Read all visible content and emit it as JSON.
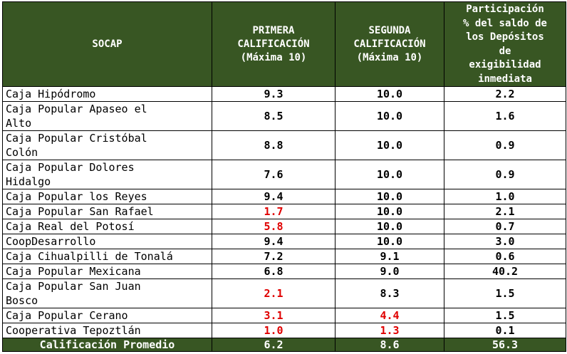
{
  "header": {
    "col1": "SOCAP",
    "col2": "PRIMERA\nCALIFICACIÓN\n(Máxima 10)",
    "col3": "SEGUNDA\nCALIFICACIÓN\n(Máxima 10)",
    "col4": "Participación\n% del saldo de\nlos Depósitos\nde\nexigibilidad\ninmediata"
  },
  "rows": [
    {
      "name": "Caja Hipódromo",
      "first": "9.3",
      "second": "10.0",
      "share": "2.2",
      "first_flag": false,
      "second_flag": false,
      "lines": 1
    },
    {
      "name": "Caja Popular Apaseo el\nAlto",
      "first": "8.5",
      "second": "10.0",
      "share": "1.6",
      "first_flag": false,
      "second_flag": false,
      "lines": 2
    },
    {
      "name": "Caja Popular Cristóbal\nColón",
      "first": "8.8",
      "second": "10.0",
      "share": "0.9",
      "first_flag": false,
      "second_flag": false,
      "lines": 2
    },
    {
      "name": "Caja Popular Dolores\nHidalgo",
      "first": "7.6",
      "second": "10.0",
      "share": "0.9",
      "first_flag": false,
      "second_flag": false,
      "lines": 2
    },
    {
      "name": "Caja Popular los Reyes",
      "first": "9.4",
      "second": "10.0",
      "share": "1.0",
      "first_flag": false,
      "second_flag": false,
      "lines": 1
    },
    {
      "name": "Caja Popular San Rafael",
      "first": "1.7",
      "second": "10.0",
      "share": "2.1",
      "first_flag": true,
      "second_flag": false,
      "lines": 1
    },
    {
      "name": "Caja Real del Potosí",
      "first": "5.8",
      "second": "10.0",
      "share": "0.7",
      "first_flag": true,
      "second_flag": false,
      "lines": 1
    },
    {
      "name": "CoopDesarrollo",
      "first": "9.4",
      "second": "10.0",
      "share": "3.0",
      "first_flag": false,
      "second_flag": false,
      "lines": 1
    },
    {
      "name": "Caja Cihualpilli de Tonalá",
      "first": "7.2",
      "second": "9.1",
      "share": "0.6",
      "first_flag": false,
      "second_flag": false,
      "lines": 1
    },
    {
      "name": "Caja Popular Mexicana",
      "first": "6.8",
      "second": "9.0",
      "share": "40.2",
      "first_flag": false,
      "second_flag": false,
      "lines": 1
    },
    {
      "name": "Caja Popular San Juan\nBosco",
      "first": "2.1",
      "second": "8.3",
      "share": "1.5",
      "first_flag": true,
      "second_flag": false,
      "lines": 2
    },
    {
      "name": "Caja Popular Cerano",
      "first": "3.1",
      "second": "4.4",
      "share": "1.5",
      "first_flag": true,
      "second_flag": true,
      "lines": 1
    },
    {
      "name": "Cooperativa Tepoztlán",
      "first": "1.0",
      "second": "1.3",
      "share": "0.1",
      "first_flag": true,
      "second_flag": true,
      "lines": 1
    }
  ],
  "footer": {
    "label": "Calificación Promedio",
    "first": "6.2",
    "second": "8.6",
    "share": "56.3"
  },
  "colors": {
    "header_bg": "#385623",
    "flag_red": "#e00000"
  }
}
